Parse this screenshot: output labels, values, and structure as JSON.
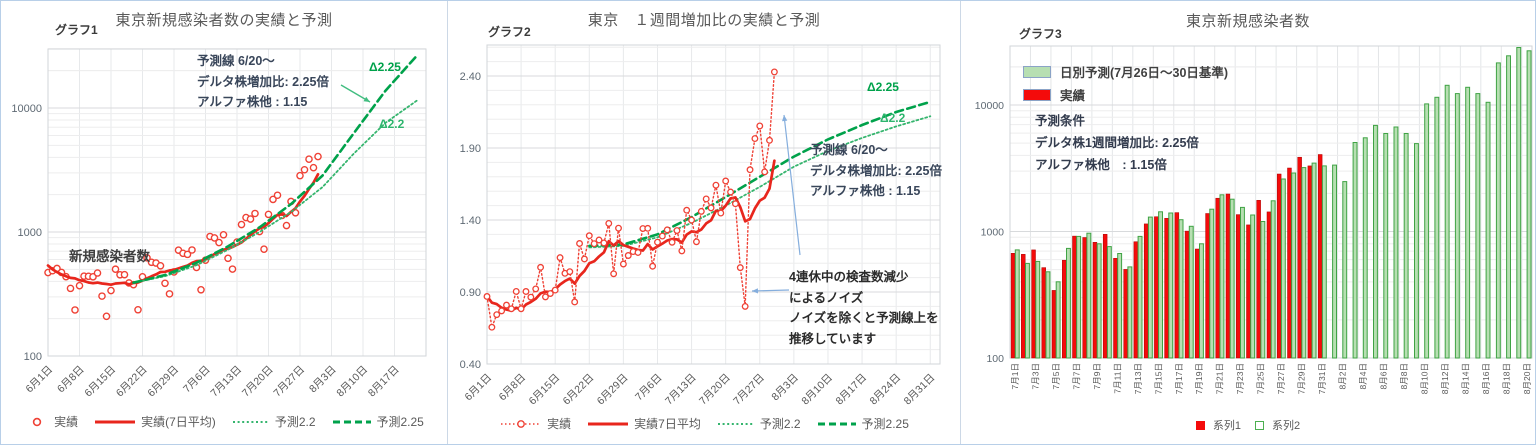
{
  "chart_data": [
    {
      "type": "line",
      "panel_label": "グラフ1",
      "title": "東京新規感染者数の実績と予測",
      "yscale": "log",
      "ylim": [
        100,
        30000
      ],
      "y_ticks": [
        "100",
        "1000",
        "10000"
      ],
      "x_ticks": [
        "6月1日",
        "6月8日",
        "6月15日",
        "6月22日",
        "6月29日",
        "7月6日",
        "7月13日",
        "7月20日",
        "7月27日",
        "8月3日",
        "8月10日",
        "8月17日"
      ],
      "annotation": {
        "line1": "予測線  6/20〜",
        "line2": "デルタ株増加比: 2.25倍",
        "line3": "アルファ株他    : 1.15"
      },
      "series_callout": "新規感染者数",
      "delta_label_225": "Δ2.25",
      "delta_label_22": "Δ2.2",
      "daily_from_may19": [
        766,
        843,
        649,
        602,
        535,
        340,
        542,
        743,
        684,
        614,
        539,
        448,
        260,
        471,
        487,
        508,
        472,
        436,
        351,
        235,
        369,
        440,
        439,
        435,
        467,
        304,
        209,
        337,
        501,
        452,
        453,
        388,
        376,
        236,
        435,
        619,
        570,
        562,
        534,
        386,
        317,
        476,
        714,
        673,
        660,
        716,
        518,
        342,
        593,
        920,
        896,
        822,
        950,
        614,
        502,
        830,
        1149,
        1308,
        1271,
        1410,
        1008,
        727,
        1387,
        1832,
        1979,
        1359,
        1128,
        1763,
        1429,
        2848,
        3177,
        3865,
        3300,
        4058
      ],
      "forecast_2_2": [
        [
          19,
          390
        ],
        [
          26,
          440
        ],
        [
          33,
          540
        ],
        [
          40,
          720
        ],
        [
          47,
          1000
        ],
        [
          54,
          1450
        ],
        [
          61,
          2300
        ],
        [
          68,
          4300
        ],
        [
          75,
          7600
        ],
        [
          82,
          11500
        ]
      ],
      "forecast_2_25": [
        [
          19,
          390
        ],
        [
          26,
          450
        ],
        [
          33,
          565
        ],
        [
          40,
          765
        ],
        [
          47,
          1090
        ],
        [
          54,
          1680
        ],
        [
          61,
          2850
        ],
        [
          68,
          6300
        ],
        [
          75,
          13800
        ],
        [
          82,
          26500
        ]
      ],
      "legend": [
        {
          "label": "実績"
        },
        {
          "label": "実績(7日平均)"
        },
        {
          "label": "予測2.2"
        },
        {
          "label": "予測2.25"
        }
      ]
    },
    {
      "type": "line",
      "panel_label": "グラフ2",
      "title": "東京　１週間増加比の実績と予測",
      "ylim": [
        0.4,
        2.65
      ],
      "y_ticks": [
        "0.40",
        "0.90",
        "1.40",
        "1.90",
        "2.40"
      ],
      "y_tick_values": [
        0.4,
        0.9,
        1.4,
        1.9,
        2.4
      ],
      "x_ticks": [
        "6月1日",
        "6月8日",
        "6月15日",
        "6月22日",
        "6月29日",
        "7月6日",
        "7月13日",
        "7月20日",
        "7月27日",
        "8月3日",
        "8月10日",
        "8月17日",
        "8月24日",
        "8月31日"
      ],
      "annotation": {
        "line1": "予測線  6/20〜",
        "line2": "デルタ株増加比: 2.25倍",
        "line3": "アルファ株他    : 1.15"
      },
      "noise_annotation": {
        "line1": "4連休中の検査数減少",
        "line2": "によるノイズ",
        "line3": "ノイズを除くと予測線上を",
        "line4": "推移しています"
      },
      "delta_label_225": "Δ2.25",
      "delta_label_22": "Δ2.2",
      "forecast_2_2": [
        [
          21,
          1.21
        ],
        [
          28,
          1.22
        ],
        [
          35,
          1.28
        ],
        [
          42,
          1.38
        ],
        [
          49,
          1.5
        ],
        [
          56,
          1.63
        ],
        [
          63,
          1.77
        ],
        [
          70,
          1.88
        ],
        [
          77,
          1.97
        ],
        [
          84,
          2.05
        ],
        [
          91,
          2.12
        ]
      ],
      "forecast_2_25": [
        [
          21,
          1.22
        ],
        [
          28,
          1.23
        ],
        [
          35,
          1.3
        ],
        [
          42,
          1.42
        ],
        [
          49,
          1.56
        ],
        [
          56,
          1.7
        ],
        [
          63,
          1.84
        ],
        [
          70,
          1.96
        ],
        [
          77,
          2.06
        ],
        [
          84,
          2.15
        ],
        [
          91,
          2.22
        ]
      ],
      "legend": [
        {
          "label": "実績"
        },
        {
          "label": "実績7日平均"
        },
        {
          "label": "予測2.2"
        },
        {
          "label": "予測2.25"
        }
      ]
    },
    {
      "type": "bar",
      "panel_label": "グラフ3",
      "title": "東京新規感染者数",
      "yscale": "log",
      "ylim": [
        100,
        30000
      ],
      "y_ticks": [
        "100",
        "1000",
        "10000"
      ],
      "x_ticks": [
        "7月1日",
        "7月3日",
        "7月5日",
        "7月7日",
        "7月9日",
        "7月11日",
        "7月13日",
        "7月15日",
        "7月17日",
        "7月19日",
        "7月21日",
        "7月23日",
        "7月25日",
        "7月27日",
        "7月29日",
        "7月31日",
        "8月2日",
        "8月4日",
        "8月6日",
        "8月8日",
        "8月10日",
        "8月12日",
        "8月14日",
        "8月16日",
        "8月18日",
        "8月20日"
      ],
      "legend_top": [
        {
          "label": "日別予測(7月26日〜30日基準)"
        },
        {
          "label": "実績"
        }
      ],
      "annotation": {
        "line1": "予測条件",
        "line2": "デルタ株1週間増加比: 2.25倍",
        "line3": "アルファ株他　: 1.15倍"
      },
      "series": [
        {
          "name": "系列1",
          "values": [
            673,
            660,
            716,
            518,
            342,
            593,
            920,
            896,
            822,
            950,
            614,
            502,
            830,
            1149,
            1308,
            1271,
            1410,
            1008,
            727,
            1387,
            1832,
            1979,
            1359,
            1128,
            1763,
            1429,
            2848,
            3177,
            3865,
            3300,
            4058
          ]
        },
        {
          "name": "系列2",
          "values": [
            716,
            560,
            580,
            480,
            400,
            735,
            915,
            970,
            800,
            760,
            670,
            525,
            915,
            1300,
            1430,
            1400,
            1240,
            1100,
            800,
            1500,
            1950,
            1800,
            1550,
            1350,
            1200,
            1750,
            2600,
            2900,
            3200,
            3470,
            3300,
            3350,
            2480,
            5050,
            5500,
            6900,
            5950,
            6700,
            5950,
            4950,
            10200,
            11500,
            14300,
            12300,
            13800,
            12300,
            10500,
            21500,
            24500,
            28500,
            26800
          ]
        }
      ],
      "legend_bottom": [
        {
          "label": "系列1"
        },
        {
          "label": "系列2"
        }
      ]
    }
  ],
  "colors": {
    "actual_red": "#e8261d",
    "marker_red": "#ef4135",
    "forecast_green_225": "#00a24b",
    "forecast_green_22": "#35b56e",
    "bar_green_fill": "#b7dfb2",
    "bar_green_edge": "#3fa344",
    "bar_red_fill": "#f40b0b",
    "bar_red_edge": "#aa0000",
    "arrow_blue": "#85aedd"
  }
}
